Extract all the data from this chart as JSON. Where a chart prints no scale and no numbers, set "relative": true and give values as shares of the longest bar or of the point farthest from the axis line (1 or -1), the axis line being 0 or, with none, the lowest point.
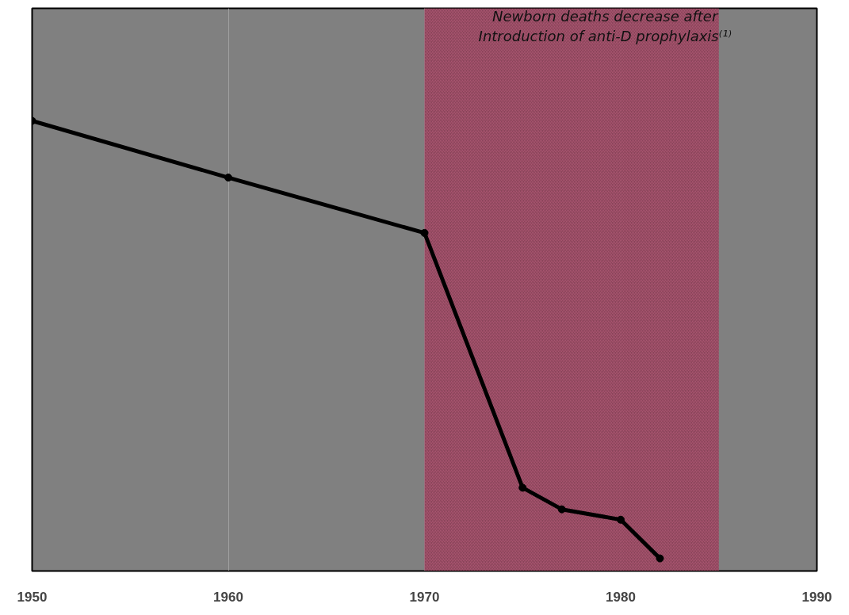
{
  "chart_data": {
    "type": "line",
    "relative": true,
    "x": [
      1950,
      1960,
      1970,
      1975,
      1977,
      1980,
      1982
    ],
    "series": [
      {
        "color": "#000000",
        "values": [
          1,
          0.874,
          0.751,
          0.185,
          0.137,
          0.114,
          0.028
        ]
      }
    ],
    "xlim": [
      1950,
      1990
    ],
    "xticks": [
      1950,
      1960,
      1970,
      1980,
      1990
    ],
    "grid": "x",
    "marker": "circle",
    "line_style": "solid",
    "bands": [
      {
        "axis": "x",
        "from": 1970,
        "to": 1985,
        "color": "#8b3a52"
      }
    ],
    "annotations": [
      "Newborn deaths decrease after\nIntroduction of anti-D prophylaxis⁽¹⁾"
    ]
  }
}
